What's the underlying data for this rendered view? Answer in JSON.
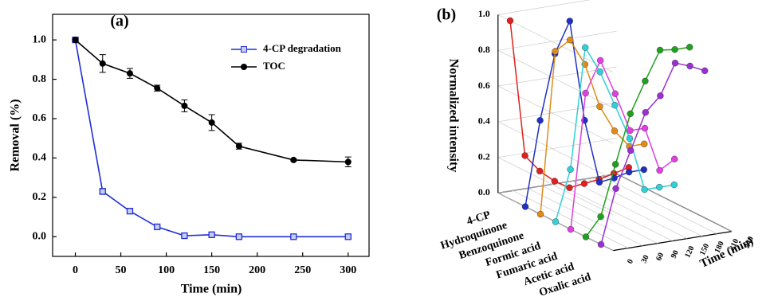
{
  "chart_data": [
    {
      "type": "line",
      "label": "(a)",
      "x_label": "Time (min)",
      "y_label": "Removal (%)",
      "x": [
        0,
        30,
        60,
        90,
        120,
        150,
        180,
        240,
        300
      ],
      "series": [
        {
          "name": "4-CP degradation",
          "color": "#1f2fd6",
          "marker": "square",
          "values": [
            1.0,
            0.23,
            0.13,
            0.05,
            0.005,
            0.01,
            0.0,
            0.0,
            0.0
          ],
          "errors": [
            0.005,
            0.015,
            0.008,
            0.006,
            0.006,
            0.008,
            0.004,
            0.004,
            0.004
          ]
        },
        {
          "name": "TOC",
          "color": "#000000",
          "marker": "circle",
          "values": [
            1.0,
            0.88,
            0.83,
            0.755,
            0.665,
            0.58,
            0.46,
            0.39,
            0.38
          ],
          "errors": [
            0.005,
            0.045,
            0.025,
            0.015,
            0.03,
            0.04,
            0.015,
            0.005,
            0.025
          ]
        }
      ],
      "xlim": [
        -25,
        323
      ],
      "ylim": [
        -0.1,
        1.13
      ],
      "xticks": [
        0,
        50,
        100,
        150,
        200,
        250,
        300
      ],
      "yticks": [
        {
          "value": 0,
          "label": "0.0"
        },
        {
          "value": 0.2,
          "label": "0.2"
        },
        {
          "value": 0.4,
          "label": "0.4"
        },
        {
          "value": 0.6,
          "label": "0.6"
        },
        {
          "value": 0.8,
          "label": "0.8"
        },
        {
          "value": 1,
          "label": "1.0"
        }
      ],
      "legend": "upper right"
    },
    {
      "type": "line3d",
      "label": "(b)",
      "x_label": "Time (min)",
      "z_label": "Normalized intensity",
      "x": [
        0,
        30,
        60,
        90,
        120,
        150,
        180,
        210,
        240
      ],
      "series": [
        {
          "name": "4-CP",
          "color": "#e0201f",
          "values": [
            1.0,
            0.23,
            0.13,
            0.06,
            0.01,
            0.02,
            0.03,
            0.05,
            0.07
          ]
        },
        {
          "name": "Hydroquinone",
          "color": "#2030c0",
          "values": [
            0,
            0.47,
            0.83,
            1.0,
            0.43,
            0.07,
            0.08,
            0.1,
            0.1
          ]
        },
        {
          "name": "Benzoquinone",
          "color": "#e08a1a",
          "values": [
            0,
            0.9,
            0.95,
            0.8,
            0.55,
            0.4,
            0.3,
            0.3,
            null
          ]
        },
        {
          "name": "Formic acid",
          "color": "#30d0d8",
          "values": [
            0,
            0.28,
            0.95,
            0.8,
            0.6,
            0.4,
            0.1,
            0.1,
            0.1
          ]
        },
        {
          "name": "Fumaric acid",
          "color": "#e040e0",
          "values": [
            0,
            0.75,
            0.92,
            0.72,
            0.5,
            0.5,
            0.25,
            0.3,
            null
          ]
        },
        {
          "name": "Acetic acid",
          "color": "#20a020",
          "values": [
            0,
            0.1,
            0.38,
            0.65,
            0.82,
            0.98,
            0.97,
            0.97,
            null
          ]
        },
        {
          "name": "Oxalic acid",
          "color": "#9a30d0",
          "values": [
            0,
            0.3,
            0.5,
            0.7,
            0.78,
            0.95,
            0.92,
            0.88,
            null
          ]
        }
      ],
      "xlim": [
        0,
        240
      ],
      "zlim": [
        0,
        1
      ],
      "xticks": [
        0,
        30,
        60,
        90,
        120,
        150,
        180,
        210,
        240
      ],
      "zticks": [
        {
          "value": 0,
          "label": "0.0"
        },
        {
          "value": 0.2,
          "label": "0.2"
        },
        {
          "value": 0.4,
          "label": "0.4"
        },
        {
          "value": 0.6,
          "label": "0.6"
        },
        {
          "value": 0.8,
          "label": "0.8"
        },
        {
          "value": 1,
          "label": "1.0"
        }
      ]
    }
  ]
}
